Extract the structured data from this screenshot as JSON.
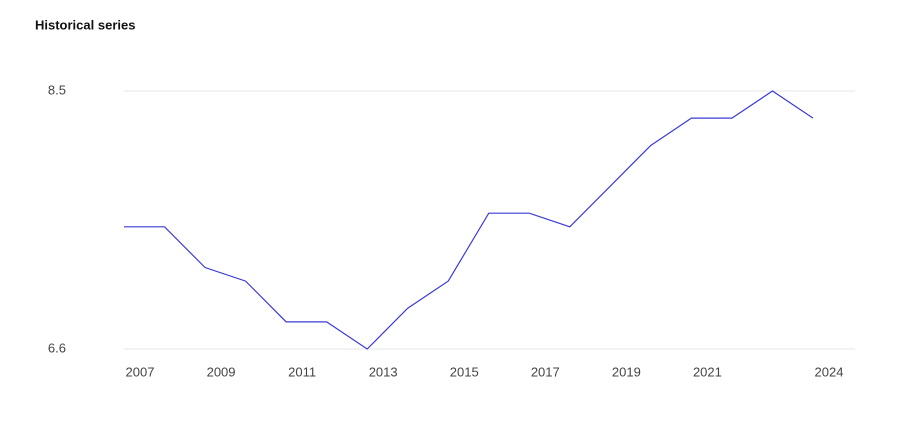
{
  "chart_data": {
    "type": "line",
    "title": "Historical series",
    "x": [
      2007,
      2008,
      2009,
      2010,
      2011,
      2012,
      2013,
      2014,
      2015,
      2016,
      2017,
      2018,
      2019,
      2020,
      2021,
      2022,
      2023,
      2024
    ],
    "series": [
      {
        "color": "#3b3bd6",
        "values": [
          7.5,
          7.5,
          7.2,
          7.1,
          6.8,
          6.8,
          6.6,
          6.9,
          7.1,
          7.6,
          7.6,
          7.5,
          7.8,
          8.1,
          8.3,
          8.3,
          8.5,
          8.3
        ]
      }
    ],
    "xlim": [
      2007,
      2024
    ],
    "xticks": [
      2007,
      2009,
      2011,
      2013,
      2015,
      2017,
      2019,
      2021,
      2024
    ],
    "ylim": [
      6.6,
      8.5
    ],
    "yticks": [
      6.6,
      8.5
    ],
    "grid": true
  }
}
